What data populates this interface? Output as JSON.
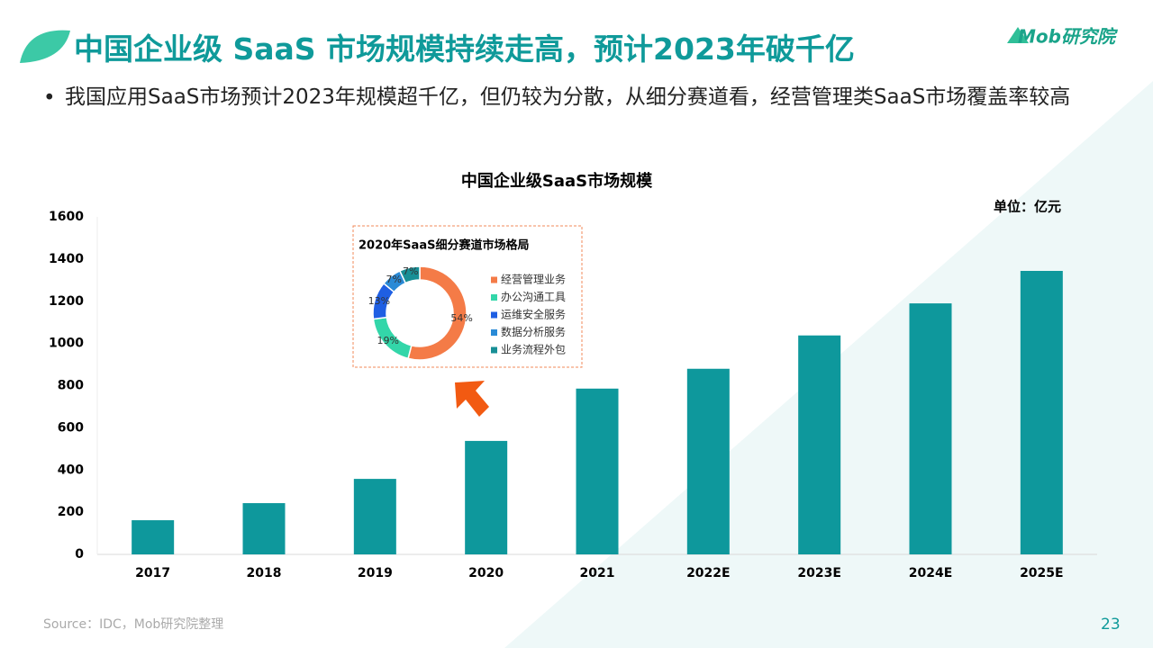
{
  "slide": {
    "title": "中国企业级 SaaS 市场规模持续走高，预计2023年破千亿",
    "bullet": "我国应用SaaS市场预计2023年规模超千亿，但仍较为分散，从细分赛道看，经营管理类SaaS市场覆盖率较高",
    "logo": "Mob研究院",
    "source": "Source：IDC，Mob研究院整理",
    "page": "23"
  },
  "chart_data": [
    {
      "type": "bar",
      "title": "中国企业级SaaS市场规模",
      "unit": "单位：亿元",
      "categories": [
        "2017",
        "2018",
        "2019",
        "2020",
        "2021",
        "2022E",
        "2023E",
        "2024E",
        "2025E"
      ],
      "values": [
        162,
        243,
        358,
        538,
        786,
        880,
        1038,
        1190,
        1344
      ],
      "color": "#0e989c",
      "ylim": [
        0,
        1600
      ],
      "yticks": [
        0,
        200,
        400,
        600,
        800,
        1000,
        1200,
        1400,
        1600
      ],
      "grid": false
    },
    {
      "type": "pie",
      "title": "2020年SaaS细分赛道市场格局",
      "categories": [
        "经营管理业务",
        "办公沟通工具",
        "运维安全服务",
        "数据分析服务",
        "业务流程外包"
      ],
      "values": [
        54,
        19,
        13,
        7,
        7
      ],
      "value_labels": [
        "54%",
        "19%",
        "13%",
        "7%",
        "7%"
      ],
      "colors": [
        "#f47b47",
        "#33d6a9",
        "#1f5fe3",
        "#2a8ad6",
        "#188f96"
      ]
    }
  ]
}
